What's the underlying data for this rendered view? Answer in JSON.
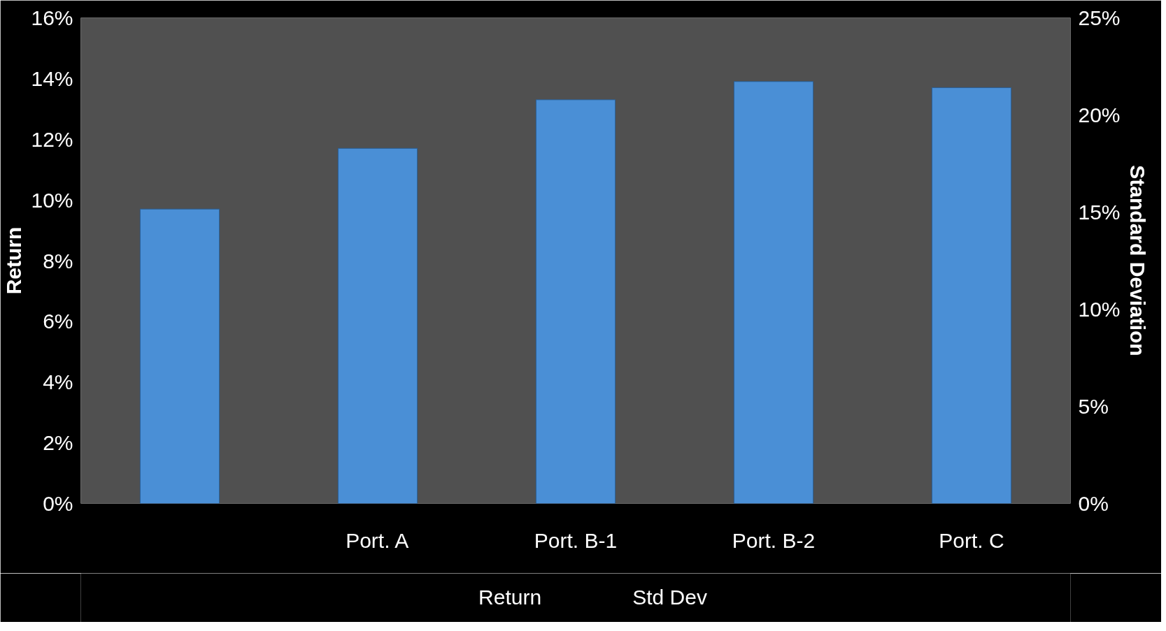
{
  "chart_data": {
    "type": "bar",
    "xlabel": null,
    "ylabel": "Return",
    "y2label": "Standard Deviation",
    "categories": [
      null,
      "Port. A",
      "Port. B-1",
      "Port. B-2",
      "Port. C"
    ],
    "series": [
      {
        "name": "Return",
        "color": "#4a8fd6",
        "values": [
          9.7,
          11.7,
          13.3,
          13.9,
          13.7
        ]
      },
      {
        "name": "Std Dev",
        "type": "line",
        "values": [
          null,
          null,
          null,
          null,
          null
        ]
      }
    ],
    "ylim": [
      0,
      16
    ],
    "yticks": [
      {
        "value": 0,
        "label": "0%"
      },
      {
        "value": 2,
        "label": "2%"
      },
      {
        "value": 4,
        "label": "4%"
      },
      {
        "value": 6,
        "label": "6%"
      },
      {
        "value": 8,
        "label": "8%"
      },
      {
        "value": 10,
        "label": "10%"
      },
      {
        "value": 12,
        "label": "12%"
      },
      {
        "value": 14,
        "label": "14%"
      },
      {
        "value": 16,
        "label": "16%"
      }
    ],
    "y2lim": [
      0,
      25
    ],
    "y2ticks": [
      {
        "value": 0,
        "label": "0%"
      },
      {
        "value": 5,
        "label": "5%"
      },
      {
        "value": 10,
        "label": "10%"
      },
      {
        "value": 15,
        "label": "15%"
      },
      {
        "value": 20,
        "label": "20%"
      },
      {
        "value": 25,
        "label": "25%"
      }
    ],
    "grid": false,
    "legend": "bottom"
  }
}
